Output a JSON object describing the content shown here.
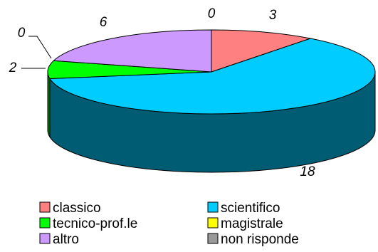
{
  "chart_data": {
    "type": "pie",
    "style": "3d",
    "title": "",
    "slices": [
      {
        "name": "classico",
        "value": 3,
        "color": "#ff8080"
      },
      {
        "name": "scientifico",
        "value": 18,
        "color": "#00ccff"
      },
      {
        "name": "tecnico-prof.le",
        "value": 2,
        "color": "#00ff00"
      },
      {
        "name": "magistrale",
        "value": 0,
        "color": "#ffff00"
      },
      {
        "name": "altro",
        "value": 6,
        "color": "#cc99ff"
      },
      {
        "name": "non risponde",
        "value": 0,
        "color": "#999999"
      }
    ],
    "legend_position": "bottom"
  }
}
